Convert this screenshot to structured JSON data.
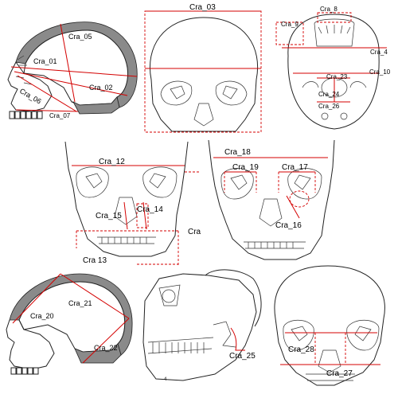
{
  "labels": {
    "cra_01": "Cra_01",
    "cra_02": "Cra_02",
    "cra_03": "Cra_03",
    "cra_4": "Cra_4",
    "cra_05": "Cra_05",
    "cra_06": "Cra_06",
    "cra_07": "Cra_07",
    "cra_8": "Cra_8",
    "cra_9": "Cra_9",
    "cra_10": "Cra_10",
    "cra_12": "Cra_12",
    "cra_13": "Cra  13",
    "cra_14": "Cra_14",
    "cra_15": "Cra_15",
    "cra_16": "Cra_16",
    "cra_17": "Cra_17",
    "cra_18": "Cra_18",
    "cra_19": "Cra_19",
    "cra_20": "Cra_20",
    "cra_21": "Cra_21",
    "cra_22": "Cra_22",
    "cra_23": "Cra_23",
    "cra_24": "Cra_24",
    "cra_25": "Cra_25",
    "cra_26": "Cra_26",
    "cra_27": "Cra_27",
    "cra_28": "Cra_28",
    "cut_off": "Cra",
    "small_mark": "4"
  },
  "colors": {
    "measurement": "#d40000",
    "bone": "#8a8a8a",
    "outline": "#222222"
  }
}
